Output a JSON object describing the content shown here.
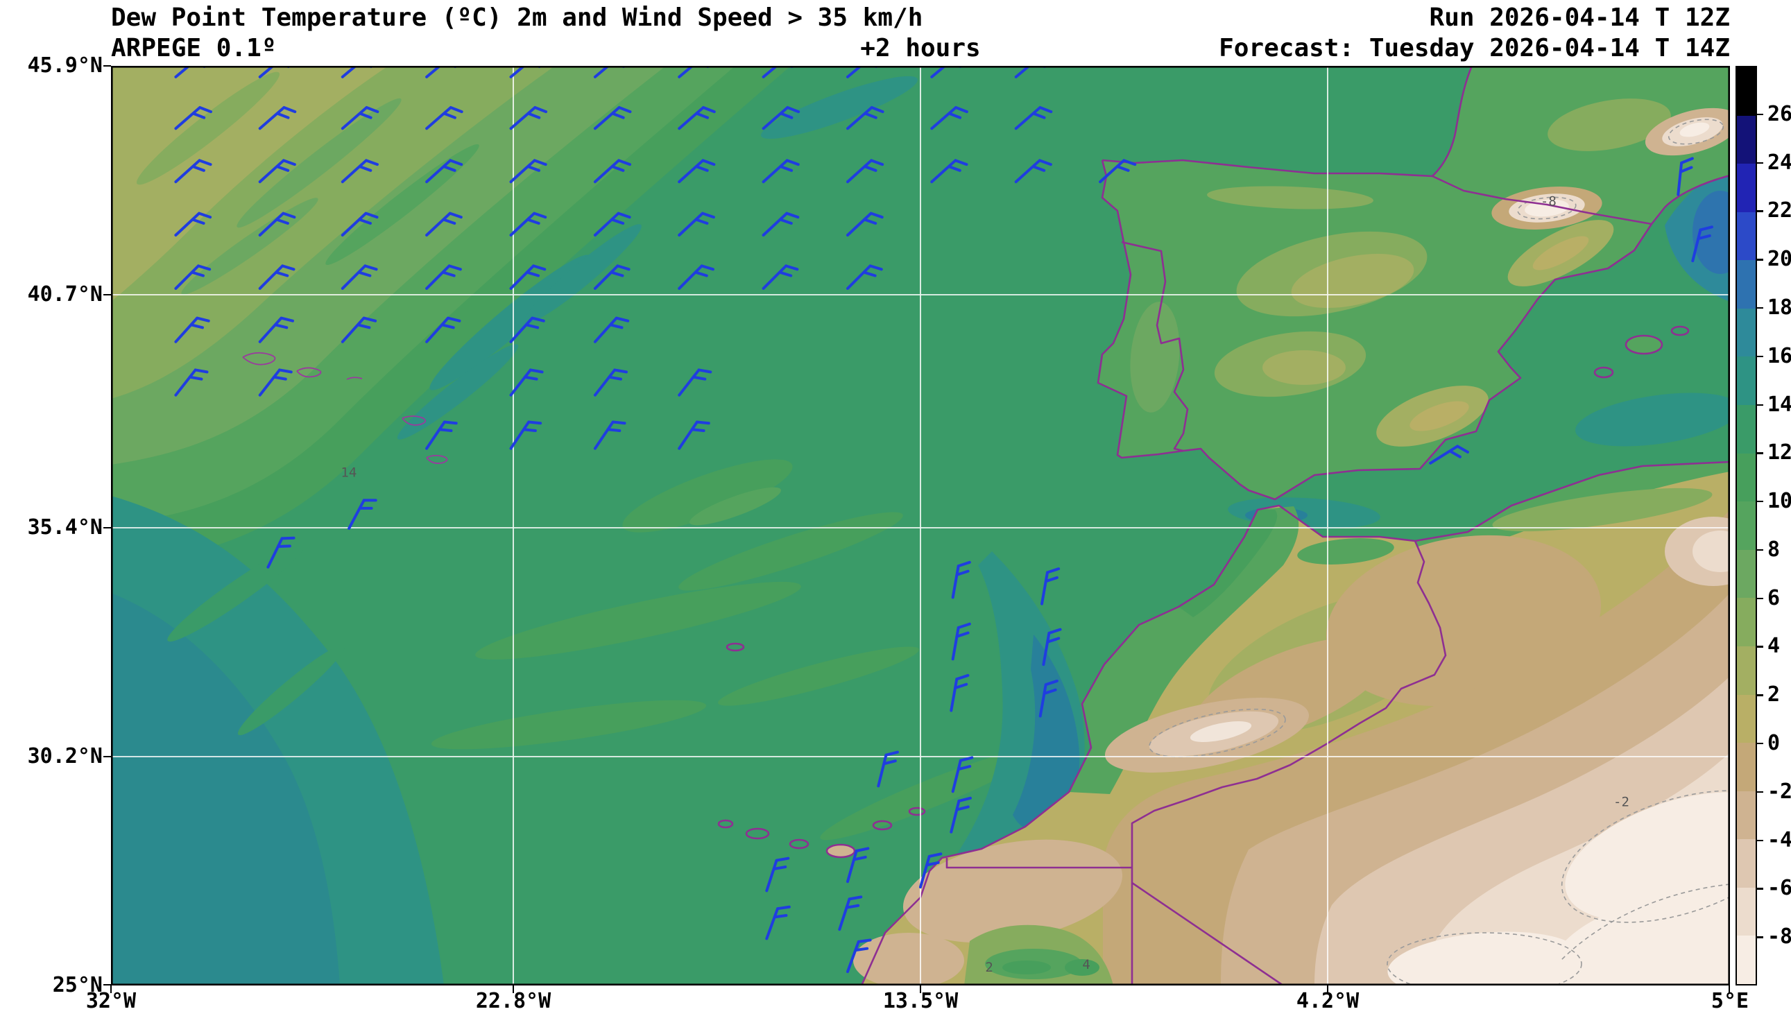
{
  "header": {
    "title": "Dew Point Temperature (ºC) 2m and Wind Speed > 35 km/h",
    "model": "ARPEGE 0.1º",
    "step": "+2 hours",
    "run": "Run 2026-04-14 T 12Z",
    "forecast": "Forecast: Tuesday 2026-04-14 T 14Z"
  },
  "axes": {
    "x_ticks": [
      "32°W",
      "22.8°W",
      "13.5°W",
      "4.2°W",
      "5°E"
    ],
    "y_ticks": [
      "45.9°N",
      "40.7°N",
      "35.4°N",
      "30.2°N",
      "25°N"
    ]
  },
  "colorbar": {
    "unit": "ºC",
    "ticks": [
      26,
      24,
      22,
      20,
      18,
      16,
      14,
      12,
      10,
      8,
      6,
      4,
      2,
      0,
      -2,
      -4,
      -6,
      -8
    ],
    "segment_colors_top_to_bottom": [
      "#000000",
      "#131278",
      "#2124b4",
      "#2c4ac8",
      "#2e72b0",
      "#2e8a9a",
      "#2e9384",
      "#3a9b68",
      "#479f5c",
      "#55a45e",
      "#6ca861",
      "#86ac5e",
      "#a3af62",
      "#b9af66",
      "#c4a878",
      "#cfb391",
      "#dec7b1",
      "#ecdccd",
      "#f7ede4"
    ],
    "frame_color": "#000000"
  },
  "chart_data": {
    "type": "heatmap",
    "title": "Dew Point Temperature (ºC) 2m and Wind Speed > 35 km/h",
    "subtitle": "ARPEGE 0.1º  +2 hours",
    "run": "2026-04-14 T 12Z",
    "valid": "Tuesday 2026-04-14 T 14Z",
    "lon_range_deg": [
      -32,
      5
    ],
    "lat_range_deg": [
      25,
      45.9
    ],
    "x_tick_labels": [
      "32°W",
      "22.8°W",
      "13.5°W",
      "4.2°W",
      "5°E"
    ],
    "y_tick_labels": [
      "45.9°N",
      "40.7°N",
      "35.4°N",
      "30.2°N",
      "25°N"
    ],
    "value_ticks_degC": [
      26,
      24,
      22,
      20,
      18,
      16,
      14,
      12,
      10,
      8,
      6,
      4,
      2,
      0,
      -2,
      -4,
      -6,
      -8
    ],
    "palette_top_to_bottom": [
      "#000000",
      "#131278",
      "#2124b4",
      "#2c4ac8",
      "#2e72b0",
      "#2e8a9a",
      "#2e9384",
      "#3a9b68",
      "#479f5c",
      "#55a45e",
      "#6ca861",
      "#86ac5e",
      "#a3af62",
      "#b9af66",
      "#c4a878",
      "#cfb391",
      "#dec7b1",
      "#ecdccd",
      "#f7ede4"
    ],
    "grid": true,
    "legend_position": "right-colorbar",
    "regions_depicted": [
      "Atlantic ocean dew points mostly 10-16 ºC (green to teal)",
      "Yellow-green 2-8 ºC airmass in the far northwest corner",
      "Teal 14-18 ºC band hugging the Moroccan Atlantic coast and the southwest ocean",
      "Iberian Peninsula 4-12 ºC with a dry -8 ºC spot over the Pyrenees",
      "Sahara and Algerian interior -2 to below -8 ºC (tan to white)"
    ],
    "wind_barbs_note": "Blue wind barbs plotted only where wind speed > 35 km/h",
    "wind_barb_color": "#1f3de0",
    "coastline_color": "#8e2f92",
    "contour_labels": [
      {
        "text": "14",
        "fx": 0.142,
        "fy": 0.447
      },
      {
        "text": "-8",
        "fx": 0.883,
        "fy": 0.152
      },
      {
        "text": "-2",
        "fx": 0.928,
        "fy": 0.805
      },
      {
        "text": "2",
        "fx": 0.54,
        "fy": 0.985
      },
      {
        "text": "4",
        "fx": 0.6,
        "fy": 0.982
      }
    ],
    "wind_barbs": [
      [
        0.04,
        0.012,
        50
      ],
      [
        0.092,
        0.012,
        50
      ],
      [
        0.143,
        0.012,
        50
      ],
      [
        0.195,
        0.012,
        50
      ],
      [
        0.247,
        0.012,
        50
      ],
      [
        0.299,
        0.012,
        50
      ],
      [
        0.351,
        0.012,
        50
      ],
      [
        0.403,
        0.012,
        50
      ],
      [
        0.455,
        0.012,
        50
      ],
      [
        0.507,
        0.012,
        50
      ],
      [
        0.559,
        0.012,
        50
      ],
      [
        0.04,
        0.068,
        49
      ],
      [
        0.092,
        0.068,
        49
      ],
      [
        0.143,
        0.068,
        49
      ],
      [
        0.195,
        0.068,
        49
      ],
      [
        0.247,
        0.068,
        49
      ],
      [
        0.299,
        0.068,
        49
      ],
      [
        0.351,
        0.068,
        49
      ],
      [
        0.403,
        0.068,
        49
      ],
      [
        0.455,
        0.068,
        49
      ],
      [
        0.507,
        0.068,
        49
      ],
      [
        0.559,
        0.068,
        49
      ],
      [
        0.04,
        0.126,
        48
      ],
      [
        0.092,
        0.126,
        48
      ],
      [
        0.143,
        0.126,
        48
      ],
      [
        0.195,
        0.126,
        48
      ],
      [
        0.247,
        0.126,
        48
      ],
      [
        0.299,
        0.126,
        48
      ],
      [
        0.351,
        0.126,
        48
      ],
      [
        0.403,
        0.126,
        48
      ],
      [
        0.455,
        0.126,
        48
      ],
      [
        0.507,
        0.126,
        48
      ],
      [
        0.559,
        0.126,
        48
      ],
      [
        0.611,
        0.126,
        48
      ],
      [
        0.04,
        0.184,
        47
      ],
      [
        0.092,
        0.184,
        47
      ],
      [
        0.143,
        0.184,
        47
      ],
      [
        0.195,
        0.184,
        47
      ],
      [
        0.247,
        0.184,
        47
      ],
      [
        0.299,
        0.184,
        47
      ],
      [
        0.351,
        0.184,
        47
      ],
      [
        0.403,
        0.184,
        47
      ],
      [
        0.455,
        0.184,
        47
      ],
      [
        0.04,
        0.242,
        45
      ],
      [
        0.092,
        0.242,
        45
      ],
      [
        0.143,
        0.242,
        45
      ],
      [
        0.195,
        0.242,
        45
      ],
      [
        0.247,
        0.242,
        45
      ],
      [
        0.299,
        0.242,
        45
      ],
      [
        0.351,
        0.242,
        45
      ],
      [
        0.403,
        0.242,
        45
      ],
      [
        0.455,
        0.242,
        45
      ],
      [
        0.04,
        0.3,
        42
      ],
      [
        0.092,
        0.3,
        42
      ],
      [
        0.143,
        0.3,
        42
      ],
      [
        0.195,
        0.3,
        42
      ],
      [
        0.247,
        0.3,
        42
      ],
      [
        0.299,
        0.3,
        42
      ],
      [
        0.04,
        0.358,
        38
      ],
      [
        0.092,
        0.358,
        38
      ],
      [
        0.247,
        0.358,
        38
      ],
      [
        0.299,
        0.358,
        38
      ],
      [
        0.351,
        0.358,
        38
      ],
      [
        0.195,
        0.416,
        34
      ],
      [
        0.247,
        0.416,
        34
      ],
      [
        0.299,
        0.416,
        34
      ],
      [
        0.351,
        0.416,
        34
      ],
      [
        0.097,
        0.545,
        26
      ],
      [
        0.147,
        0.503,
        28
      ],
      [
        0.815,
        0.432,
        58
      ],
      [
        0.968,
        0.14,
        6
      ],
      [
        0.977,
        0.212,
        14
      ],
      [
        0.52,
        0.578,
        10
      ],
      [
        0.575,
        0.585,
        10
      ],
      [
        0.52,
        0.645,
        10
      ],
      [
        0.576,
        0.651,
        10
      ],
      [
        0.519,
        0.701,
        10
      ],
      [
        0.574,
        0.707,
        10
      ],
      [
        0.474,
        0.783,
        14
      ],
      [
        0.52,
        0.789,
        14
      ],
      [
        0.519,
        0.833,
        14
      ],
      [
        0.455,
        0.887,
        16
      ],
      [
        0.5,
        0.893,
        16
      ],
      [
        0.405,
        0.897,
        18
      ],
      [
        0.45,
        0.939,
        18
      ],
      [
        0.405,
        0.949,
        20
      ],
      [
        0.455,
        0.985,
        20
      ]
    ]
  }
}
